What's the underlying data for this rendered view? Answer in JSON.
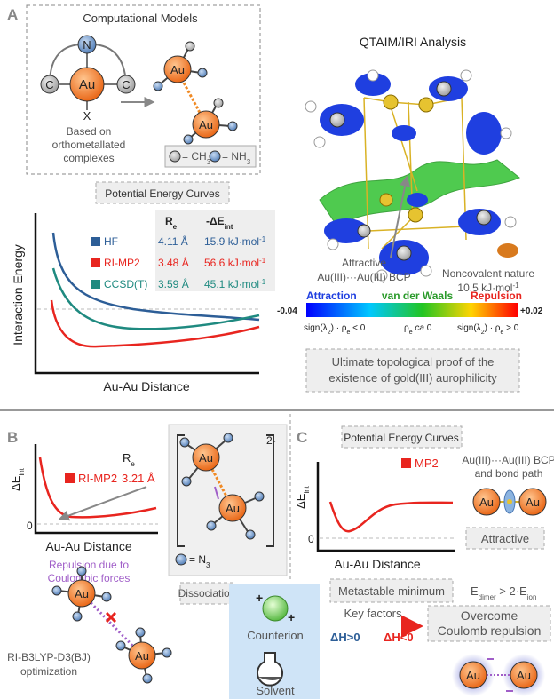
{
  "panel_a": {
    "label": "A",
    "models": {
      "title": "Computational Models",
      "ligand_atoms": [
        "N",
        "C",
        "C"
      ],
      "metal": "Au",
      "axial": "X",
      "note": [
        "Based on",
        "orthometallated",
        "complexes"
      ],
      "dimer": [
        "Au",
        "Au"
      ],
      "legend": {
        "ch3": [
          "= CH",
          "3"
        ],
        "nh3": [
          "= NH",
          "3"
        ]
      }
    },
    "pec": {
      "title": "Potential Energy Curves",
      "y_label": "Interaction Energy",
      "x_label": "Au-Au Distance",
      "header": {
        "re": [
          "R",
          "e"
        ],
        "de": [
          "-ΔE",
          "int"
        ]
      },
      "rows": [
        {
          "method": "HF",
          "re": "4.11 Å",
          "de": [
            "15.9 kJ·mol",
            "-1"
          ],
          "color": "#2d5e97"
        },
        {
          "method": "RI-MP2",
          "re": "3.48 Å",
          "de": [
            "56.6 kJ·mol",
            "-1"
          ],
          "color": "#e8251f"
        },
        {
          "method": "CCSD(T)",
          "re": "3.59 Å",
          "de": [
            "45.1 kJ·mol",
            "-1"
          ],
          "color": "#1f8a80"
        }
      ]
    },
    "qtaim": {
      "title": "QTAIM/IRI Analysis",
      "bcp": [
        "Attractive",
        "Au(III)···Au(III) BCP"
      ],
      "noncovalent": [
        "Noncovalent nature",
        "10.5 kJ·mol",
        "-1"
      ],
      "colorbar": {
        "min": "-0.04",
        "max": "+0.02",
        "attraction": "Attraction",
        "vdw": "van der Waals",
        "repulsion": "Repulsion",
        "sign_neg": [
          "sign(λ",
          "2",
          ") · ρ",
          "e",
          " < 0"
        ],
        "near_zero": [
          "ρ",
          "e",
          " ca ",
          "0"
        ],
        "sign_pos": [
          "sign(λ",
          "2",
          ") · ρ",
          "e",
          " > 0"
        ]
      },
      "conclusion": [
        "Ultimate topological proof of the",
        "existence of gold(III) aurophilicity"
      ]
    }
  },
  "panel_b": {
    "label": "B",
    "y_label": [
      "ΔE",
      "int"
    ],
    "zero": "0",
    "re": [
      "R",
      "e"
    ],
    "method": "RI-MP2",
    "distance": "3.21 Å",
    "x_label": "Au-Au Distance",
    "repulsion": [
      "Repulsion due to",
      "Coulombic forces"
    ],
    "charge": "2-",
    "complex": [
      "Au",
      "Au"
    ],
    "legend": [
      "= N",
      "3"
    ],
    "dissociation": "Dissociation",
    "dissociated": [
      "Au",
      "Au"
    ],
    "optimization": [
      "RI-B3LYP-D3(BJ)",
      "optimization"
    ]
  },
  "panel_c": {
    "label": "C",
    "title": "Potential Energy Curves",
    "method": "MP2",
    "y_label": [
      "ΔE",
      "int"
    ],
    "zero": "0",
    "x_label": "Au-Au Distance",
    "bcp": [
      "Au(III)···Au(III) BCP",
      "and bond path"
    ],
    "bcp_atoms": [
      "Au",
      "Au"
    ],
    "attractive": "Attractive",
    "metastable": "Metastable minimum",
    "energy": [
      "E",
      "dimer",
      " > 2·E",
      "ion"
    ],
    "counterion": "Counterion",
    "charges": [
      "+",
      "+"
    ],
    "solvent": "Solvent",
    "key_factors": "Key factors",
    "dh_pos": "ΔH>0",
    "dh_neg": "ΔH<0",
    "overcome": [
      "Overcome",
      "Coulomb repulsion"
    ],
    "pair": [
      "Au",
      "Au"
    ]
  }
}
